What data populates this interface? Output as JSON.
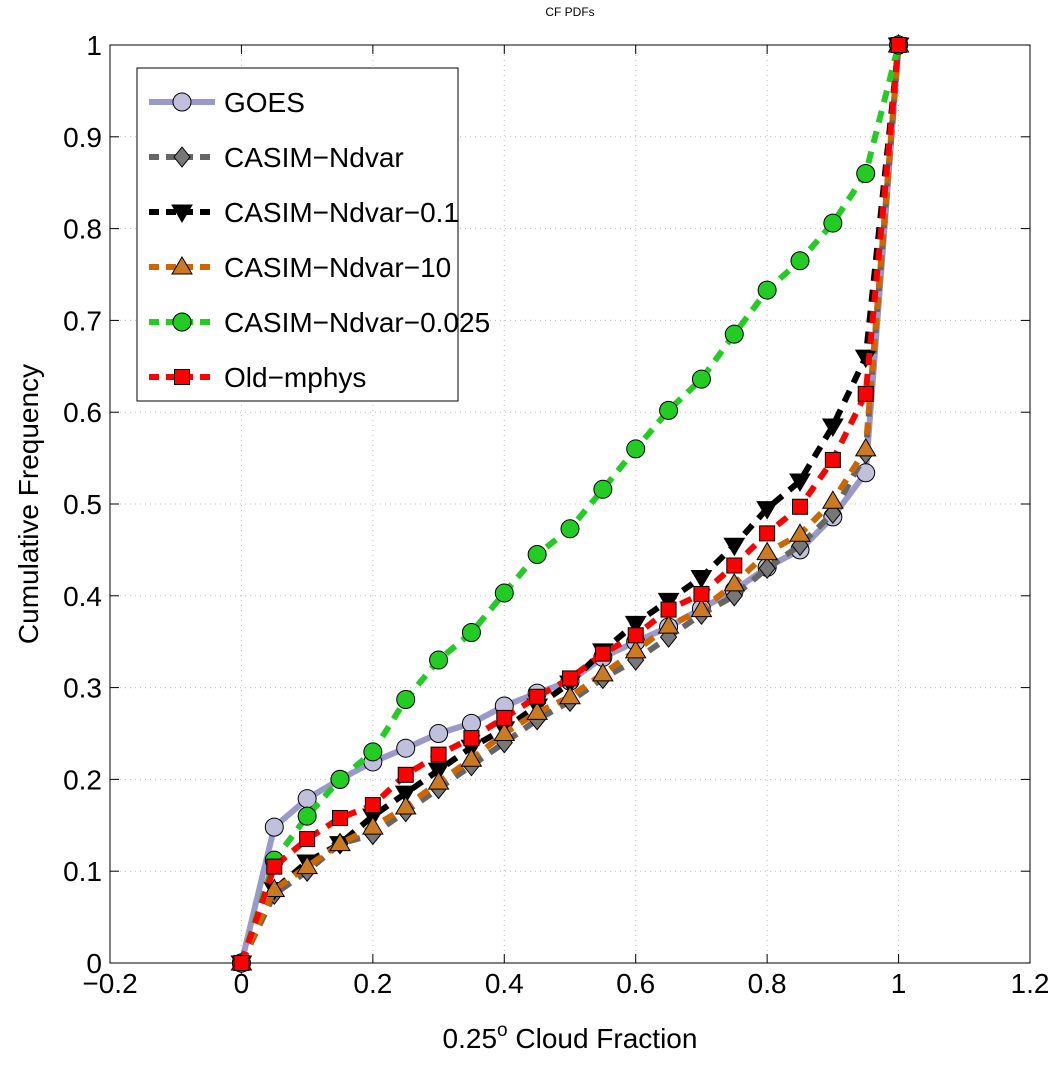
{
  "chart_data": {
    "type": "line",
    "title": "CF PDFs",
    "xlabel": [
      "0.25",
      "o",
      " Cloud Fraction"
    ],
    "ylabel": "Cumulative Frequency",
    "x": [
      0,
      0.05,
      0.1,
      0.15,
      0.2,
      0.25,
      0.3,
      0.35,
      0.4,
      0.45,
      0.5,
      0.55,
      0.6,
      0.65,
      0.7,
      0.75,
      0.8,
      0.85,
      0.9,
      0.95,
      1
    ],
    "xlim": [
      -0.2,
      1.2
    ],
    "ylim": [
      0,
      1
    ],
    "xticks": [
      {
        "value": -0.2,
        "label": "−0.2"
      },
      0,
      0.2,
      0.4,
      0.6,
      0.8,
      1,
      1.2
    ],
    "yticks": [
      0,
      0.1,
      0.2,
      0.3,
      0.4,
      0.5,
      0.6,
      0.7,
      0.8,
      0.9,
      1
    ],
    "grid": true,
    "legend": "upper left",
    "series": [
      {
        "name": "GOES",
        "color": "#9999cc",
        "marker_color": "#c0c0dc",
        "marker": "circle",
        "linestyle": "solid",
        "values": [
          0,
          0.148,
          0.179,
          0.2,
          0.219,
          0.234,
          0.25,
          0.261,
          0.28,
          0.294,
          0.307,
          0.333,
          0.35,
          0.366,
          0.386,
          0.406,
          0.431,
          0.45,
          0.486,
          0.534,
          1
        ]
      },
      {
        "name": "CASIM−Ndvar",
        "color": "#666666",
        "marker_color": "#777777",
        "marker": "diamond",
        "linestyle": "dashed",
        "values": [
          0,
          0.075,
          0.1,
          0.13,
          0.14,
          0.165,
          0.19,
          0.215,
          0.24,
          0.265,
          0.285,
          0.31,
          0.33,
          0.355,
          0.38,
          0.4,
          0.43,
          0.455,
          0.49,
          0.555,
          1
        ]
      },
      {
        "name": "CASIM−Ndvar−0.1",
        "color": "#000000",
        "marker_color": "#000000",
        "marker": "triangle-down",
        "linestyle": "dashed",
        "values": [
          0,
          0.08,
          0.11,
          0.13,
          0.16,
          0.185,
          0.21,
          0.235,
          0.255,
          0.28,
          0.305,
          0.34,
          0.37,
          0.395,
          0.42,
          0.455,
          0.495,
          0.525,
          0.585,
          0.66,
          1
        ]
      },
      {
        "name": "CASIM−Ndvar−10",
        "color": "#cc6600",
        "marker_color": "#cc7a22",
        "marker": "triangle-up",
        "linestyle": "dashed",
        "values": [
          0,
          0.08,
          0.105,
          0.13,
          0.148,
          0.17,
          0.197,
          0.222,
          0.25,
          0.273,
          0.29,
          0.315,
          0.34,
          0.367,
          0.385,
          0.413,
          0.447,
          0.467,
          0.503,
          0.56,
          1
        ]
      },
      {
        "name": "CASIM−Ndvar−0.025",
        "color": "#22cc22",
        "marker_color": "#22cc22",
        "marker": "circle",
        "linestyle": "dashed",
        "values": [
          0,
          0.112,
          0.16,
          0.2,
          0.23,
          0.287,
          0.33,
          0.36,
          0.403,
          0.445,
          0.473,
          0.516,
          0.56,
          0.602,
          0.636,
          0.685,
          0.733,
          0.765,
          0.806,
          0.86,
          1
        ]
      },
      {
        "name": "Old−mphys",
        "color": "#ff0000",
        "marker_color": "#ff0000",
        "marker": "square",
        "linestyle": "dashed",
        "values": [
          0,
          0.105,
          0.135,
          0.158,
          0.172,
          0.205,
          0.227,
          0.245,
          0.267,
          0.29,
          0.31,
          0.337,
          0.357,
          0.385,
          0.402,
          0.433,
          0.468,
          0.497,
          0.548,
          0.62,
          1
        ]
      }
    ]
  }
}
